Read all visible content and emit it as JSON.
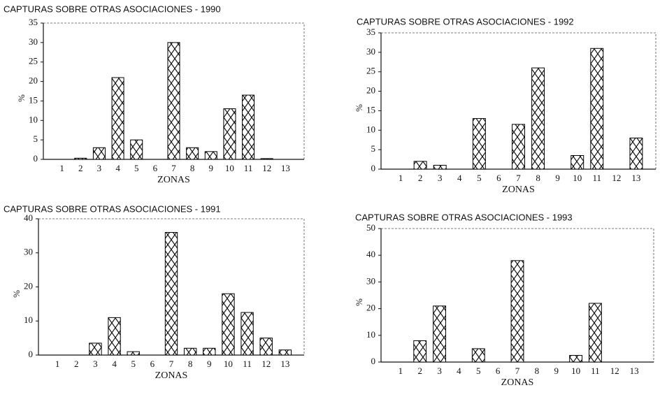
{
  "chart_data": [
    {
      "type": "bar",
      "title": "CAPTURAS SOBRE OTRAS ASOCIACIONES - 1990",
      "x_label": "ZONAS",
      "y_label": "%",
      "categories": [
        "1",
        "2",
        "3",
        "4",
        "5",
        "6",
        "7",
        "8",
        "9",
        "10",
        "11",
        "12",
        "13"
      ],
      "values": [
        0,
        0.3,
        3,
        21,
        5,
        0,
        30,
        3,
        2,
        13,
        16.5,
        0.2,
        0
      ],
      "ylim": [
        0,
        35
      ],
      "yticks": [
        0,
        5,
        10,
        15,
        20,
        25,
        30,
        35
      ],
      "color": "#000000"
    },
    {
      "type": "bar",
      "title": "CAPTURAS SOBRE OTRAS ASOCIACIONES - 1992",
      "x_label": "ZONAS",
      "y_label": "%",
      "categories": [
        "1",
        "2",
        "3",
        "4",
        "5",
        "6",
        "7",
        "8",
        "9",
        "10",
        "11",
        "12",
        "13"
      ],
      "values": [
        0,
        2,
        1,
        0,
        13,
        0,
        11.5,
        26,
        0,
        3.5,
        31,
        0,
        8
      ],
      "ylim": [
        0,
        35
      ],
      "yticks": [
        0,
        5,
        10,
        15,
        20,
        25,
        30,
        35
      ],
      "color": "#000000"
    },
    {
      "type": "bar",
      "title": "CAPTURAS SOBRE OTRAS ASOCIACIONES - 1991",
      "x_label": "ZONAS",
      "y_label": "%",
      "categories": [
        "1",
        "2",
        "3",
        "4",
        "5",
        "6",
        "7",
        "8",
        "9",
        "10",
        "11",
        "12",
        "13"
      ],
      "values": [
        0,
        0,
        3.5,
        11,
        1,
        0,
        36,
        2,
        2,
        18,
        12.5,
        5,
        1.5
      ],
      "ylim": [
        0,
        40
      ],
      "yticks": [
        0,
        10,
        20,
        30,
        40
      ],
      "color": "#000000"
    },
    {
      "type": "bar",
      "title": "CAPTURAS SOBRE OTRAS ASOCIACIONES - 1993",
      "x_label": "ZONAS",
      "y_label": "%",
      "categories": [
        "1",
        "2",
        "3",
        "4",
        "5",
        "6",
        "7",
        "8",
        "9",
        "10",
        "11",
        "12",
        "13"
      ],
      "values": [
        0,
        8,
        21,
        0,
        5,
        0,
        38,
        0,
        0,
        2.5,
        22,
        0,
        0
      ],
      "ylim": [
        0,
        50
      ],
      "yticks": [
        0,
        10,
        20,
        30,
        40,
        50
      ],
      "color": "#000000"
    }
  ]
}
